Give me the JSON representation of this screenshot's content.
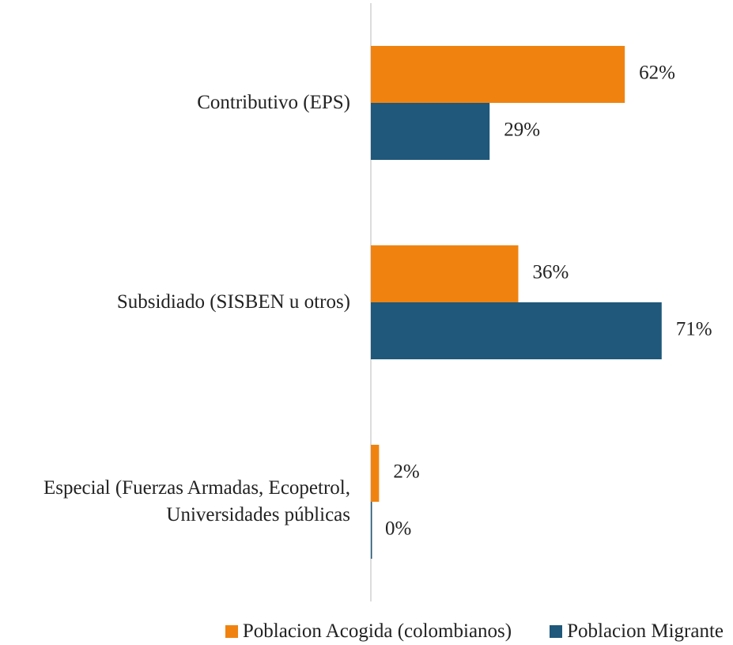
{
  "chart_data": {
    "type": "bar",
    "orientation": "horizontal",
    "categories": [
      "Contributivo (EPS)",
      "Subsidiado (SISBEN u otros)",
      "Especial (Fuerzas Armadas, Ecopetrol, Universidades públicas"
    ],
    "series": [
      {
        "name": "Poblacion Acogida (colombianos)",
        "color": "#f0830f",
        "values": [
          62,
          36,
          2
        ],
        "value_labels": [
          "62%",
          "36%",
          "2%"
        ]
      },
      {
        "name": "Poblacion Migrante",
        "color": "#1f587a",
        "values": [
          29,
          71,
          0
        ],
        "value_labels": [
          "29%",
          "71%",
          "0%"
        ]
      }
    ],
    "legend": "bottom"
  }
}
